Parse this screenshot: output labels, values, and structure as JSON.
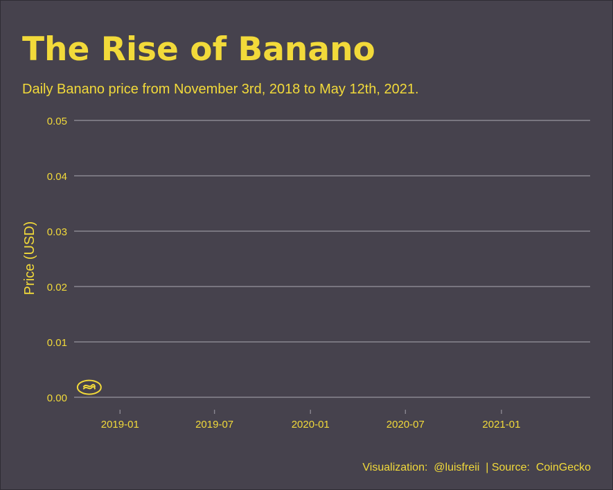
{
  "colors": {
    "background": "#46424d",
    "accent": "#f2da3a",
    "grid": "#8a8791"
  },
  "header": {
    "title": "The Rise of Banano",
    "subtitle": "Daily Banano price from November 3rd, 2018 to May 12th, 2021."
  },
  "footer": {
    "caption": "Visualization:  @luisfreii  | Source:  CoinGecko"
  },
  "chart_data": {
    "type": "scatter",
    "title": "The Rise of Banano",
    "subtitle": "Daily Banano price from November 3rd, 2018 to May 12th, 2021.",
    "xlabel": "",
    "ylabel": "Price (USD)",
    "xlim": [
      "2018-10-05",
      "2021-06-20"
    ],
    "ylim": [
      0,
      0.05
    ],
    "grid": "horizontal",
    "legend": "none",
    "y_ticks": [
      "0.00",
      "0.01",
      "0.02",
      "0.03",
      "0.04",
      "0.05"
    ],
    "x_ticks": [
      {
        "date": "2019-01-01",
        "label": "2019-01"
      },
      {
        "date": "2019-07-01",
        "label": "2019-07"
      },
      {
        "date": "2020-01-01",
        "label": "2020-01"
      },
      {
        "date": "2020-07-01",
        "label": "2020-07"
      },
      {
        "date": "2021-01-01",
        "label": "2021-01"
      }
    ],
    "points": [
      {
        "x": "2018-11-03",
        "y": 0.0018,
        "marker": "banano-logo-icon"
      }
    ]
  }
}
